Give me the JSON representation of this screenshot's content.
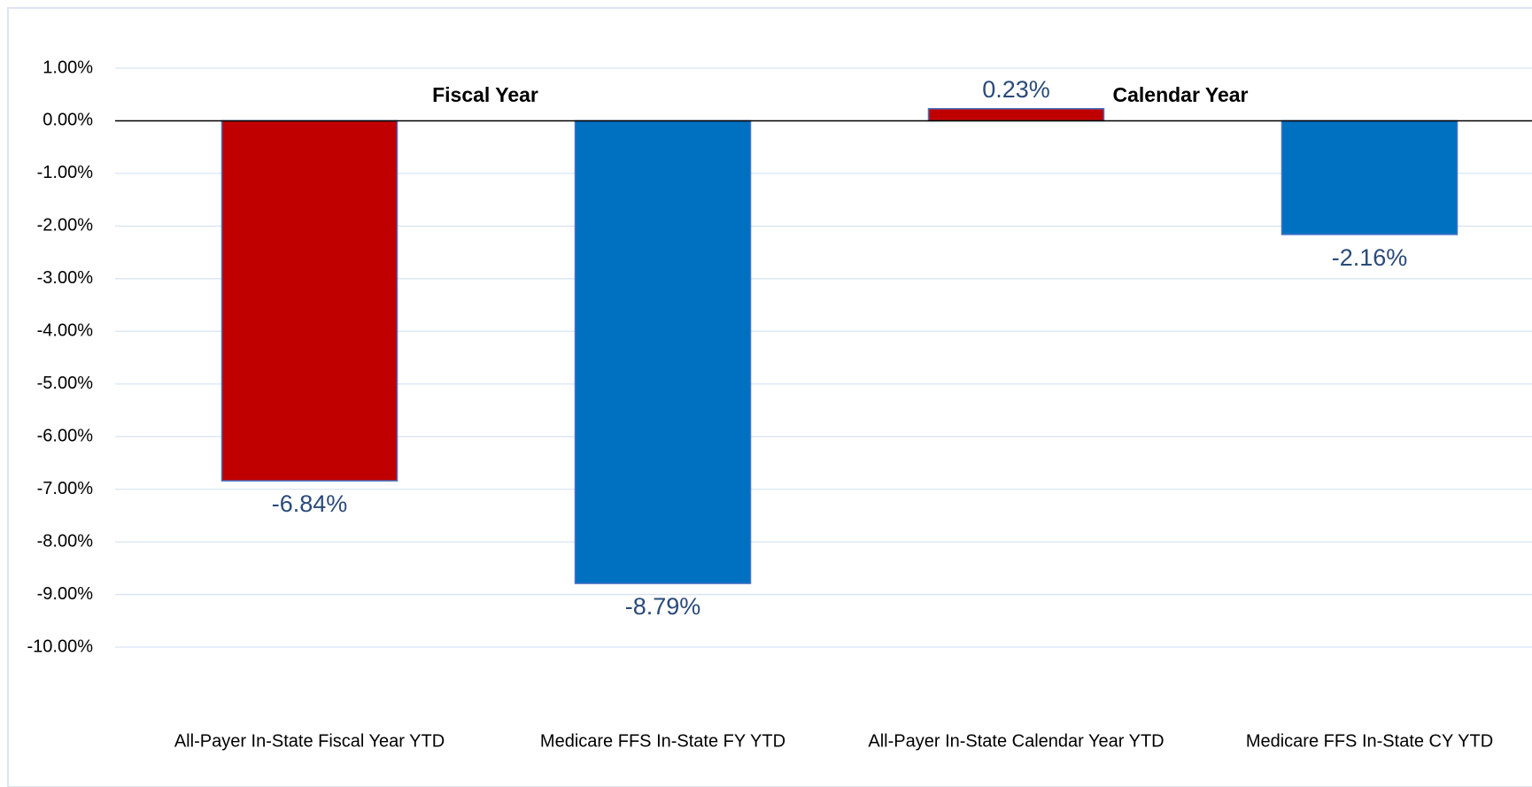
{
  "chart_data": {
    "type": "bar",
    "categories": [
      "All-Payer In-State Fiscal Year YTD",
      "Medicare FFS In-State FY YTD",
      "All-Payer In-State Calendar Year YTD",
      "Medicare FFS In-State CY YTD"
    ],
    "values": [
      -6.84,
      -8.79,
      0.23,
      -2.16
    ],
    "value_labels": [
      "-6.84%",
      "-8.79%",
      "0.23%",
      "-2.16%"
    ],
    "colors": [
      "#c00000",
      "#0070c0",
      "#c00000",
      "#0070c0"
    ],
    "ylim": [
      -10,
      1
    ],
    "yticks": [
      {
        "value": 1,
        "label": "1.00%"
      },
      {
        "value": 0,
        "label": "0.00%"
      },
      {
        "value": -1,
        "label": "-1.00%"
      },
      {
        "value": -2,
        "label": "-2.00%"
      },
      {
        "value": -3,
        "label": "-3.00%"
      },
      {
        "value": -4,
        "label": "-4.00%"
      },
      {
        "value": -5,
        "label": "-5.00%"
      },
      {
        "value": -6,
        "label": "-6.00%"
      },
      {
        "value": -7,
        "label": "-7.00%"
      },
      {
        "value": -8,
        "label": "-8.00%"
      },
      {
        "value": -9,
        "label": "-9.00%"
      },
      {
        "value": -10,
        "label": "-10.00%"
      }
    ],
    "grid": true,
    "annotations": [
      "Fiscal Year",
      "Calendar Year"
    ]
  }
}
